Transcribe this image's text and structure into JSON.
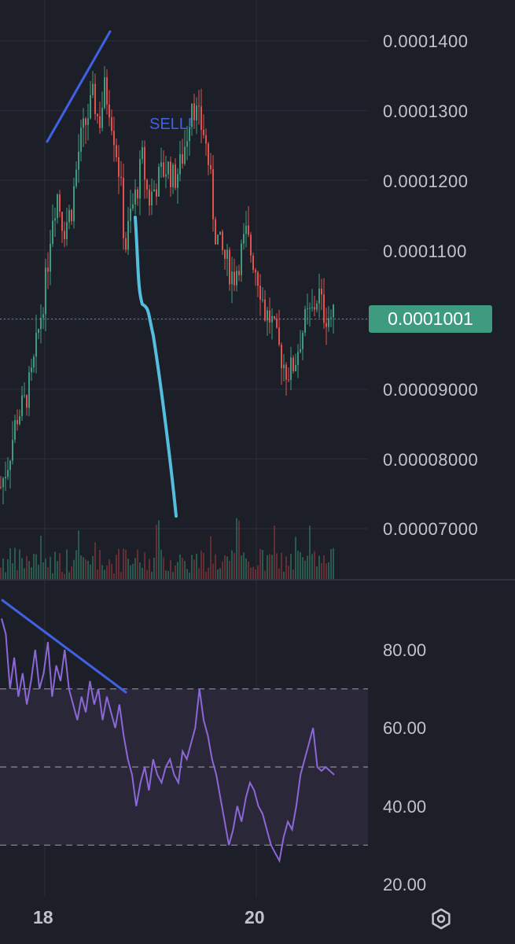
{
  "price_axis": {
    "labels": [
      "0.0001400",
      "0.0001300",
      "0.0001200",
      "0.0001100",
      "0.00009000",
      "0.00008000",
      "0.00007000"
    ],
    "last_price": "0.0001001"
  },
  "rsi_axis": {
    "labels": [
      "80.00",
      "60.00",
      "40.00",
      "20.00"
    ]
  },
  "time_axis": {
    "labels": [
      "18",
      "20"
    ]
  },
  "annotation": {
    "sell_text": "SELL!"
  },
  "icons": {
    "settings": "settings-gear-icon"
  },
  "colors": {
    "background": "#1c1f28",
    "up_candle": "#3f9b80",
    "down_candle": "#e0524e",
    "rsi_line": "#8c67d8",
    "rsi_band": "#2a2838",
    "trend_line": "#4061e6",
    "drawn_line": "#53bede",
    "grid": "#2b2f3b"
  },
  "chart_data": [
    {
      "type": "candlestick",
      "title": "",
      "ylim": [
        6.3e-05,
        0.000145
      ],
      "last_price": 0.0001001,
      "x_ticks": [
        "18",
        "20"
      ],
      "close_path": [
        [
          0,
          7.6e-05
        ],
        [
          10,
          8e-05
        ],
        [
          20,
          8.6e-05
        ],
        [
          30,
          8.8e-05
        ],
        [
          40,
          9.2e-05
        ],
        [
          50,
          0.0001
        ],
        [
          58,
          0.000106
        ],
        [
          65,
          0.000115
        ],
        [
          72,
          0.000118
        ],
        [
          80,
          0.000113
        ],
        [
          90,
          0.000116
        ],
        [
          100,
          0.000125
        ],
        [
          110,
          0.000129
        ],
        [
          118,
          0.000132
        ],
        [
          125,
          0.000128
        ],
        [
          132,
          0.000133
        ],
        [
          138,
          0.000131
        ],
        [
          145,
          0.000126
        ],
        [
          152,
          0.00012
        ],
        [
          158,
          0.00011
        ],
        [
          165,
          0.000115
        ],
        [
          172,
          0.000118
        ],
        [
          180,
          0.000123
        ],
        [
          188,
          0.000117
        ],
        [
          196,
          0.000119
        ],
        [
          204,
          0.000121
        ],
        [
          212,
          0.000122
        ],
        [
          220,
          0.00012
        ],
        [
          228,
          0.000122
        ],
        [
          236,
          0.000126
        ],
        [
          243,
          0.000132
        ],
        [
          250,
          0.000129
        ],
        [
          258,
          0.000127
        ],
        [
          265,
          0.000122
        ],
        [
          272,
          0.000113
        ],
        [
          280,
          0.00011
        ],
        [
          288,
          0.000108
        ],
        [
          296,
          0.000106
        ],
        [
          304,
          0.000109
        ],
        [
          312,
          0.000112
        ],
        [
          320,
          0.000109
        ],
        [
          328,
          0.000106
        ],
        [
          336,
          0.000101
        ],
        [
          344,
          0.0001
        ],
        [
          350,
          9.7e-05
        ],
        [
          356,
          9.5e-05
        ],
        [
          362,
          9.3e-05
        ],
        [
          368,
          9.25e-05
        ],
        [
          374,
          9.4e-05
        ],
        [
          380,
          9.7e-05
        ],
        [
          388,
          0.0001
        ],
        [
          396,
          0.000101
        ],
        [
          404,
          0.000104
        ],
        [
          410,
          0.000101
        ],
        [
          418,
          0.0001005
        ],
        [
          425,
          0.0001001
        ]
      ],
      "drawn_line_prices": [
        0.0001147,
        0.0001022,
        7.18e-05
      ]
    },
    {
      "type": "line",
      "title": "",
      "ylim": [
        17,
        97
      ],
      "bands": [
        30,
        50,
        70
      ],
      "values": [
        88,
        84,
        70,
        78,
        68,
        74,
        66,
        72,
        80,
        70,
        74,
        82,
        68,
        76,
        72,
        80,
        70,
        66,
        62,
        68,
        64,
        72,
        66,
        70,
        62,
        68,
        64,
        60,
        66,
        58,
        52,
        48,
        40,
        46,
        50,
        44,
        52,
        48,
        46,
        50,
        52,
        48,
        46,
        54,
        52,
        56,
        60,
        70,
        62,
        58,
        52,
        48,
        42,
        36,
        30,
        34,
        40,
        36,
        42,
        46,
        44,
        40,
        38,
        34,
        30,
        28,
        26,
        32,
        36,
        34,
        40,
        48,
        52,
        56,
        60,
        50,
        49,
        50,
        49,
        48
      ]
    }
  ]
}
